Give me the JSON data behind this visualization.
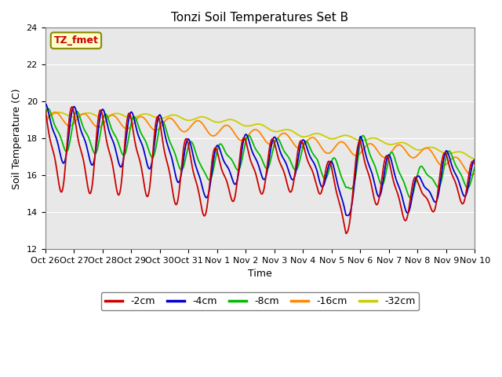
{
  "title": "Tonzi Soil Temperatures Set B",
  "xlabel": "Time",
  "ylabel": "Soil Temperature (C)",
  "ylim": [
    12,
    24
  ],
  "yticks": [
    12,
    14,
    16,
    18,
    20,
    22,
    24
  ],
  "annotation_text": "TZ_fmet",
  "colors": {
    "-2cm": "#cc0000",
    "-4cm": "#0000cc",
    "-8cm": "#00bb00",
    "-16cm": "#ff8800",
    "-32cm": "#cccc00"
  },
  "legend_labels": [
    "-2cm",
    "-4cm",
    "-8cm",
    "-16cm",
    "-32cm"
  ],
  "background_color": "#e8e8e8",
  "tick_labels": [
    "Oct 26",
    "Oct 27",
    "Oct 28",
    "Oct 29",
    "Oct 30",
    "Oct 31",
    "Nov 1",
    "Nov 2",
    "Nov 3",
    "Nov 4",
    "Nov 5",
    "Nov 6",
    "Nov 7",
    "Nov 8",
    "Nov 9",
    "Nov 10"
  ],
  "title_fontsize": 11,
  "axis_label_fontsize": 9,
  "tick_fontsize": 8,
  "legend_fontsize": 9
}
